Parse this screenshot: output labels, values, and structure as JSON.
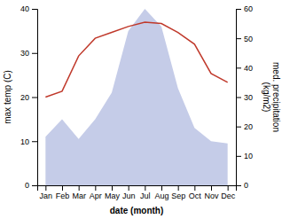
{
  "chart_data": {
    "type": "line",
    "categories": [
      "Jan",
      "Feb",
      "Mar",
      "Apr",
      "May",
      "Jun",
      "Jul",
      "Aug",
      "Sep",
      "Oct",
      "Nov",
      "Dec"
    ],
    "xlabel": "date (month)",
    "ylabel": "max temp (C)",
    "y2label": "med. precipitation\n(kg/m2)",
    "ylim": [
      0,
      40
    ],
    "yticks": [
      0,
      10,
      20,
      30,
      40
    ],
    "y2lim": [
      0,
      60
    ],
    "y2ticks": [
      0,
      10,
      20,
      30,
      40,
      50,
      60
    ],
    "grid": false,
    "series": [
      {
        "type": "area",
        "color": "#c5cce8",
        "values": [
          11.0,
          15.0,
          10.5,
          15.0,
          21.0,
          35.0,
          40.0,
          36.0,
          22.0,
          13.0,
          10.0,
          9.5
        ]
      },
      {
        "type": "line",
        "color": "#c0392b",
        "axis": "y2",
        "values": [
          30.0,
          32.0,
          44.0,
          50.0,
          52.0,
          54.0,
          55.5,
          55.0,
          52.0,
          48.0,
          38.0,
          35.0
        ]
      }
    ]
  }
}
